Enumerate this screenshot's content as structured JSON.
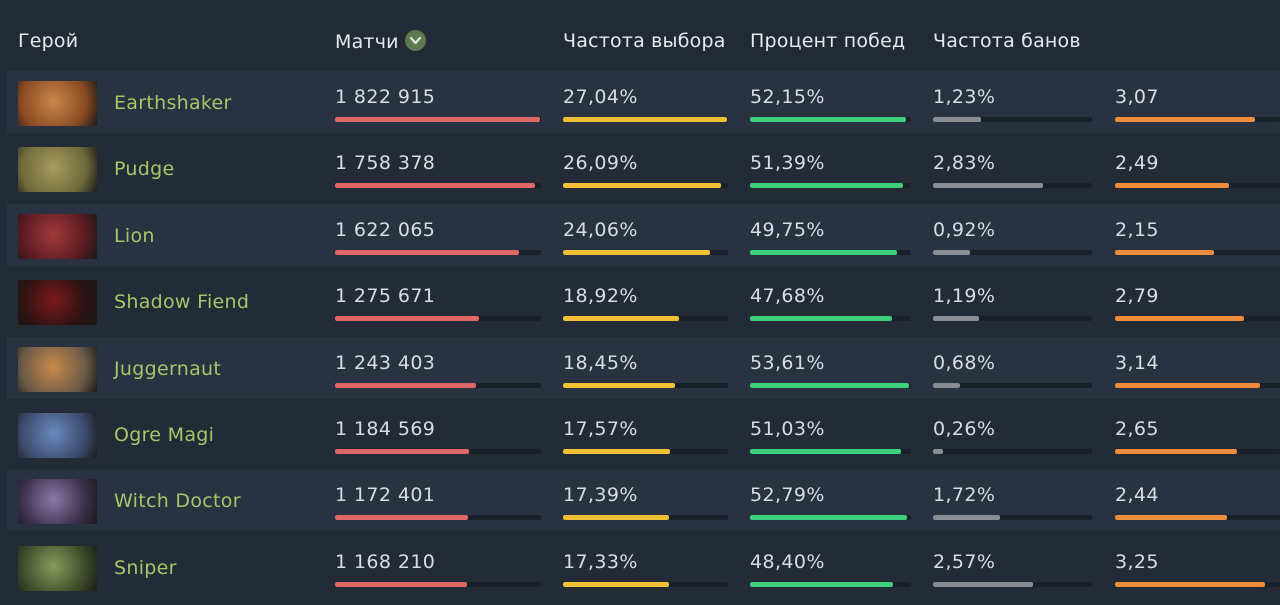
{
  "header": {
    "hero": "Герой",
    "matches": "Матчи",
    "pick_rate": "Частота выбора",
    "win_rate": "Процент побед",
    "ban_rate": "Частота банов"
  },
  "colors": {
    "matches_bar": "#e06766",
    "pick_bar": "#f0c233",
    "win_bar": "#3fd07c",
    "ban_bar": "#8a8e93",
    "last_bar": "#ef8c3c",
    "hero_name": "#a3c86a"
  },
  "rows": [
    {
      "hero": "Earthshaker",
      "matches": "1 822 915",
      "matches_frac": 0.995,
      "pick": "27,04%",
      "pick_frac": 0.994,
      "win": "52,15%",
      "win_frac": 0.968,
      "ban": "1,23%",
      "ban_frac": 0.3,
      "last": "3,07",
      "last_frac": 0.85
    },
    {
      "hero": "Pudge",
      "matches": "1 758 378",
      "matches_frac": 0.97,
      "pick": "26,09%",
      "pick_frac": 0.96,
      "win": "51,39%",
      "win_frac": 0.95,
      "ban": "2,83%",
      "ban_frac": 0.69,
      "last": "2,49",
      "last_frac": 0.69
    },
    {
      "hero": "Lion",
      "matches": "1 622 065",
      "matches_frac": 0.895,
      "pick": "24,06%",
      "pick_frac": 0.89,
      "win": "49,75%",
      "win_frac": 0.91,
      "ban": "0,92%",
      "ban_frac": 0.23,
      "last": "2,15",
      "last_frac": 0.6
    },
    {
      "hero": "Shadow Fiend",
      "matches": "1 275 671",
      "matches_frac": 0.7,
      "pick": "18,92%",
      "pick_frac": 0.7,
      "win": "47,68%",
      "win_frac": 0.88,
      "ban": "1,19%",
      "ban_frac": 0.29,
      "last": "2,79",
      "last_frac": 0.78
    },
    {
      "hero": "Juggernaut",
      "matches": "1 243 403",
      "matches_frac": 0.685,
      "pick": "18,45%",
      "pick_frac": 0.68,
      "win": "53,61%",
      "win_frac": 0.99,
      "ban": "0,68%",
      "ban_frac": 0.17,
      "last": "3,14",
      "last_frac": 0.88
    },
    {
      "hero": "Ogre Magi",
      "matches": "1 184 569",
      "matches_frac": 0.65,
      "pick": "17,57%",
      "pick_frac": 0.65,
      "win": "51,03%",
      "win_frac": 0.94,
      "ban": "0,26%",
      "ban_frac": 0.06,
      "last": "2,65",
      "last_frac": 0.74
    },
    {
      "hero": "Witch Doctor",
      "matches": "1 172 401",
      "matches_frac": 0.645,
      "pick": "17,39%",
      "pick_frac": 0.645,
      "win": "52,79%",
      "win_frac": 0.975,
      "ban": "1,72%",
      "ban_frac": 0.42,
      "last": "2,44",
      "last_frac": 0.68
    },
    {
      "hero": "Sniper",
      "matches": "1 168 210",
      "matches_frac": 0.643,
      "pick": "17,33%",
      "pick_frac": 0.643,
      "win": "48,40%",
      "win_frac": 0.89,
      "ban": "2,57%",
      "ban_frac": 0.63,
      "last": "3,25",
      "last_frac": 0.91
    }
  ]
}
